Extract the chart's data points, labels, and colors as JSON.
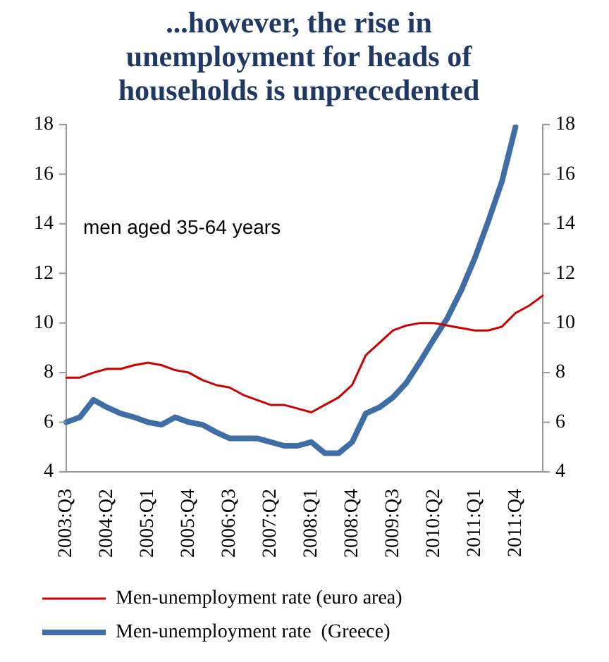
{
  "chart_data": {
    "type": "line",
    "title": "...however, the rise in unemployment for heads of households is unprecedented",
    "categories": [
      "2003:Q3",
      null,
      null,
      "2004:Q2",
      null,
      null,
      "2005:Q1",
      null,
      null,
      "2005:Q4",
      null,
      null,
      "2006:Q3",
      null,
      null,
      "2007:Q2",
      null,
      null,
      "2008:Q1",
      null,
      null,
      "2008:Q4",
      null,
      null,
      "2009:Q3",
      null,
      null,
      "2010:Q2",
      null,
      null,
      "2011:Q1",
      null,
      null,
      "2011:Q4",
      null,
      null
    ],
    "series": [
      {
        "name": "Men-unemployment rate (euro area)",
        "color": "#cc0000",
        "values": [
          7.8,
          7.8,
          8.0,
          8.15,
          8.15,
          8.3,
          8.4,
          8.3,
          8.1,
          8.0,
          7.7,
          7.5,
          7.4,
          7.1,
          6.9,
          6.7,
          6.7,
          6.55,
          6.4,
          6.7,
          7.0,
          7.5,
          8.7,
          9.2,
          9.7,
          9.9,
          10.0,
          10.0,
          9.9,
          9.8,
          9.7,
          9.7,
          9.85,
          10.4,
          10.7,
          11.1
        ]
      },
      {
        "name": "Men-unemployment rate  (Greece)",
        "color": "#3f6ea6",
        "values": [
          6.0,
          6.2,
          6.9,
          6.6,
          6.35,
          6.2,
          6.0,
          5.9,
          6.2,
          6.0,
          5.9,
          5.6,
          5.35,
          5.35,
          5.35,
          5.2,
          5.05,
          5.05,
          5.2,
          4.75,
          4.75,
          5.2,
          6.35,
          6.6,
          7.0,
          7.6,
          8.45,
          9.35,
          10.2,
          11.3,
          12.6,
          14.1,
          15.7,
          17.9,
          null,
          null
        ]
      }
    ],
    "ylim": [
      4,
      18
    ],
    "yticks": [
      4,
      6,
      8,
      10,
      12,
      14,
      16,
      18
    ],
    "y2lim": [
      4,
      18
    ],
    "y2ticks": [
      4,
      6,
      8,
      10,
      12,
      14,
      16,
      18
    ],
    "annotations": [
      "men aged 35-64 years"
    ],
    "grid": false,
    "legend": "bottom",
    "marker": "none",
    "line_style": "solid"
  }
}
